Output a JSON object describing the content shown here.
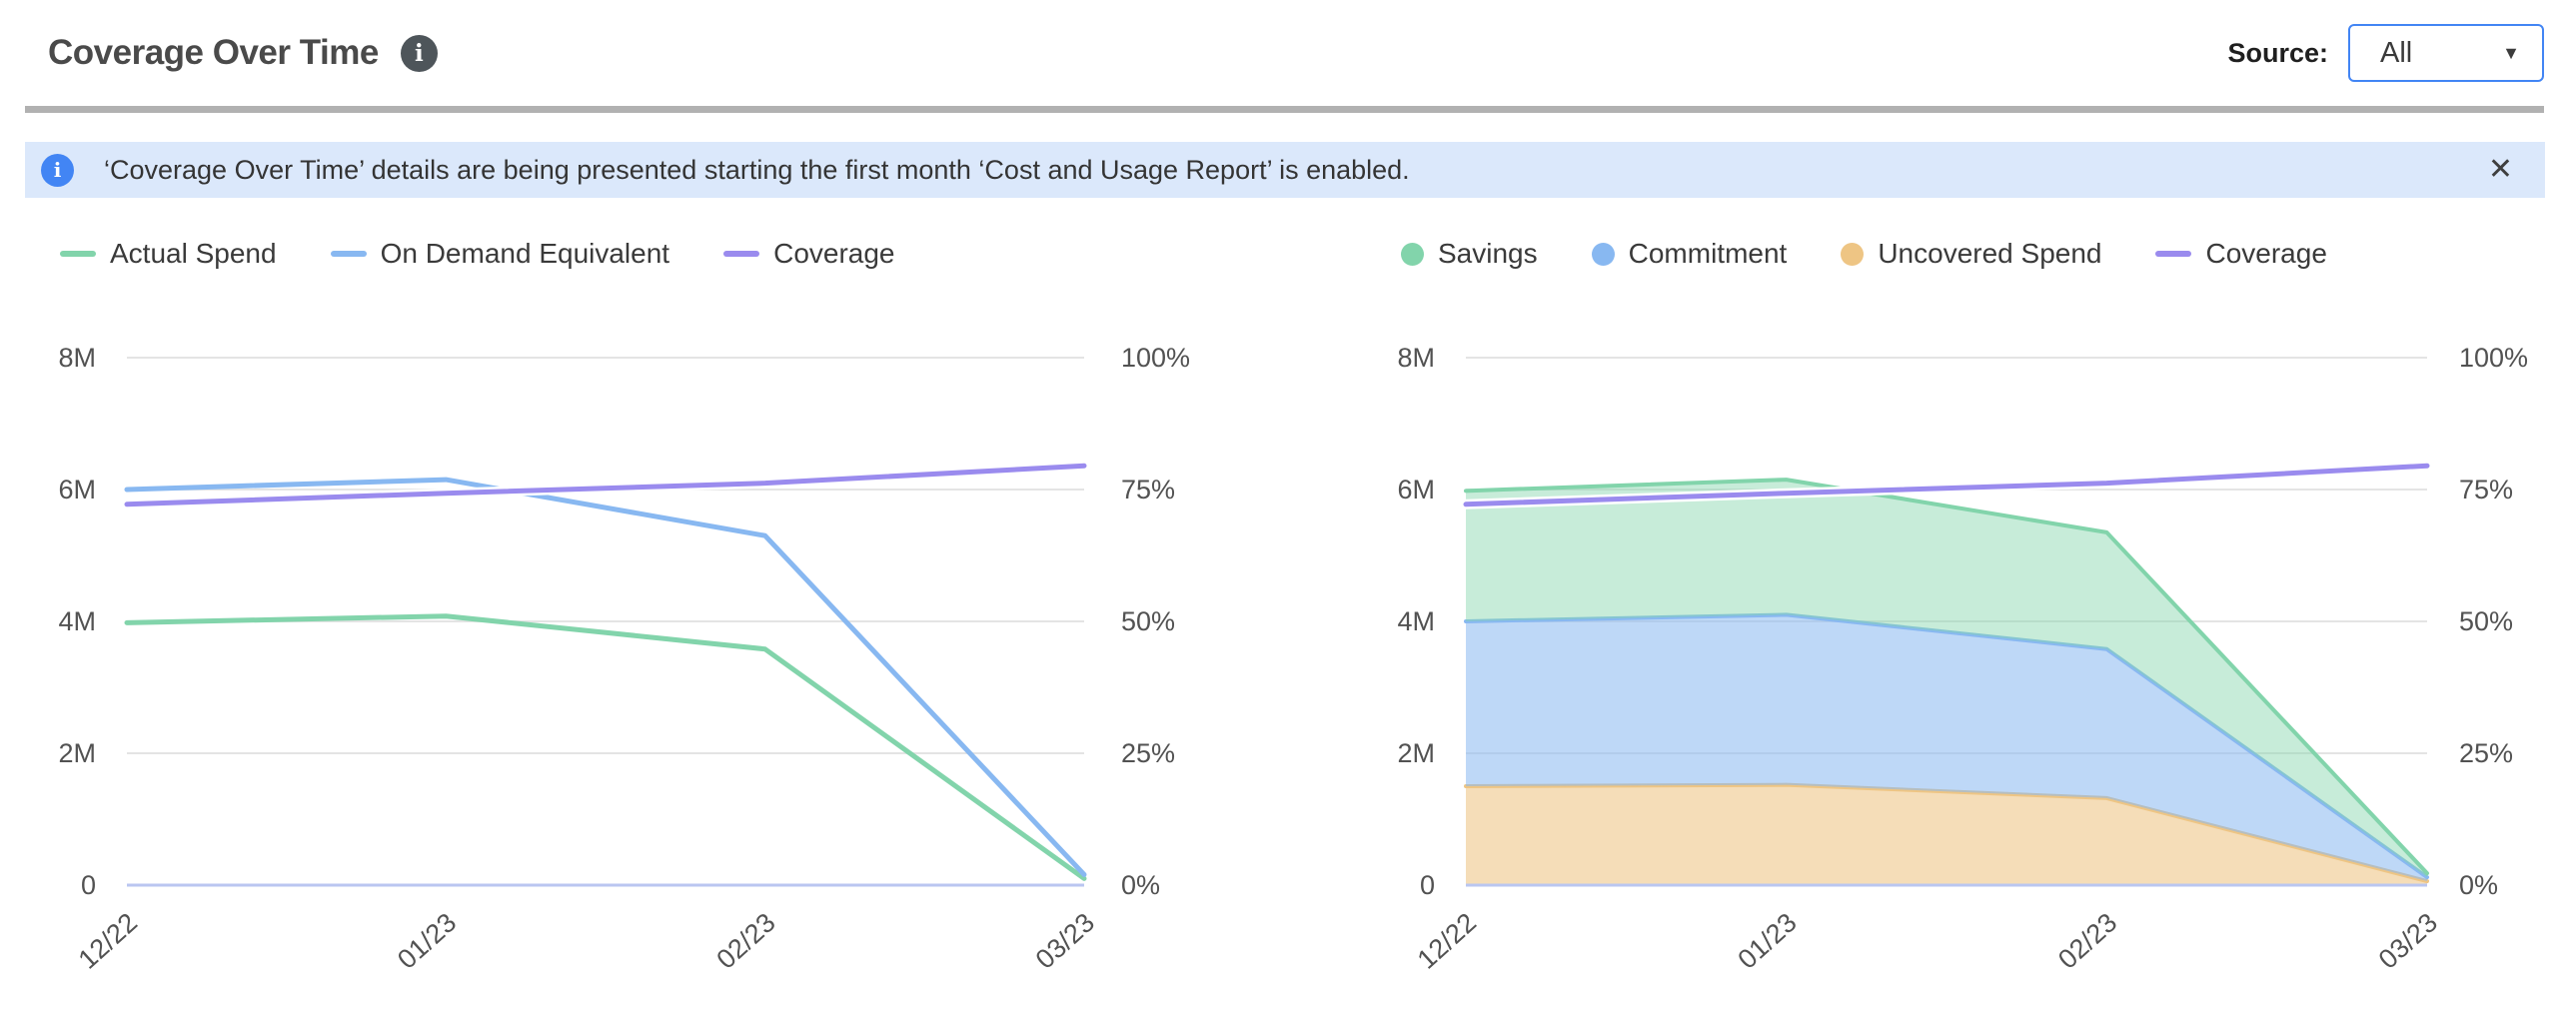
{
  "header": {
    "title": "Coverage Over Time",
    "info_icon": "i",
    "source_label": "Source:",
    "source_value": "All",
    "caret_icon": "▼"
  },
  "banner": {
    "info_icon": "i",
    "text": "‘Coverage Over Time’ details are being presented starting the first month ‘Cost and Usage Report’ is enabled.",
    "close_icon": "✕"
  },
  "colors": {
    "green": "#82d4ab",
    "blue": "#88b8f1",
    "purple": "#9a8bee",
    "orange": "#eec584",
    "green_fill": "rgba(130,212,171,0.45)",
    "blue_fill": "rgba(136,184,241,0.55)",
    "orange_fill": "rgba(238,197,132,0.58)",
    "gridline": "#e4e4e4",
    "baseline": "#bac6f0",
    "banner_bg": "#dbe8fb",
    "accent_blue": "#4285f4"
  },
  "chart_data": [
    {
      "type": "line",
      "x": [
        "12/22",
        "01/23",
        "02/23",
        "03/23"
      ],
      "units": "millions USD (left axis), percent (right axis)",
      "left_axis": {
        "ticks": [
          "8M",
          "6M",
          "4M",
          "2M",
          "0"
        ],
        "range": [
          0,
          8000000
        ]
      },
      "right_axis": {
        "ticks": [
          "100%",
          "75%",
          "50%",
          "25%",
          "0%"
        ],
        "range": [
          0,
          100
        ]
      },
      "grid": true,
      "legend_position": "top-left",
      "legend": [
        {
          "label": "Actual Spend",
          "swatch": "line",
          "color": "#82d4ab"
        },
        {
          "label": "On Demand Equivalent",
          "swatch": "line",
          "color": "#88b8f1"
        },
        {
          "label": "Coverage",
          "swatch": "line",
          "color": "#9a8bee"
        }
      ],
      "series": [
        {
          "name": "Actual Spend",
          "axis": "left",
          "color": "#82d4ab",
          "values": [
            3.98,
            4.08,
            3.58,
            0.1
          ]
        },
        {
          "name": "On Demand Equivalent",
          "axis": "left",
          "color": "#88b8f1",
          "values": [
            6.0,
            6.15,
            5.3,
            0.16
          ]
        },
        {
          "name": "Coverage",
          "axis": "right",
          "color": "#9a8bee",
          "halo": true,
          "values": [
            72.2,
            74.3,
            76.2,
            79.5
          ]
        }
      ]
    },
    {
      "type": "area",
      "stacked": true,
      "x": [
        "12/22",
        "01/23",
        "02/23",
        "03/23"
      ],
      "units": "millions USD (left axis), percent (right axis)",
      "left_axis": {
        "ticks": [
          "8M",
          "6M",
          "4M",
          "2M",
          "0"
        ],
        "range": [
          0,
          8000000
        ]
      },
      "right_axis": {
        "ticks": [
          "100%",
          "75%",
          "50%",
          "25%",
          "0%"
        ],
        "range": [
          0,
          100
        ]
      },
      "grid": true,
      "legend_position": "top-left",
      "legend": [
        {
          "label": "Savings",
          "swatch": "dot",
          "color": "#82d4ab"
        },
        {
          "label": "Commitment",
          "swatch": "dot",
          "color": "#88b8f1"
        },
        {
          "label": "Uncovered Spend",
          "swatch": "dot",
          "color": "#eec584"
        },
        {
          "label": "Coverage",
          "swatch": "line",
          "color": "#9a8bee"
        }
      ],
      "series": [
        {
          "name": "Uncovered Spend",
          "kind": "area",
          "color": "#eec584",
          "fill": "rgba(238,197,132,0.58)",
          "values": [
            1.5,
            1.52,
            1.32,
            0.06
          ]
        },
        {
          "name": "Commitment",
          "kind": "area",
          "color": "#88b8f1",
          "fill": "rgba(136,184,241,0.55)",
          "values": [
            2.5,
            2.58,
            2.26,
            0.06
          ]
        },
        {
          "name": "Savings",
          "kind": "area",
          "color": "#82d4ab",
          "fill": "rgba(130,212,171,0.45)",
          "values": [
            1.98,
            2.05,
            1.77,
            0.06
          ]
        },
        {
          "name": "Coverage",
          "kind": "line",
          "axis": "right",
          "color": "#9a8bee",
          "halo": true,
          "values": [
            72.2,
            74.3,
            76.2,
            79.5
          ]
        }
      ]
    }
  ]
}
